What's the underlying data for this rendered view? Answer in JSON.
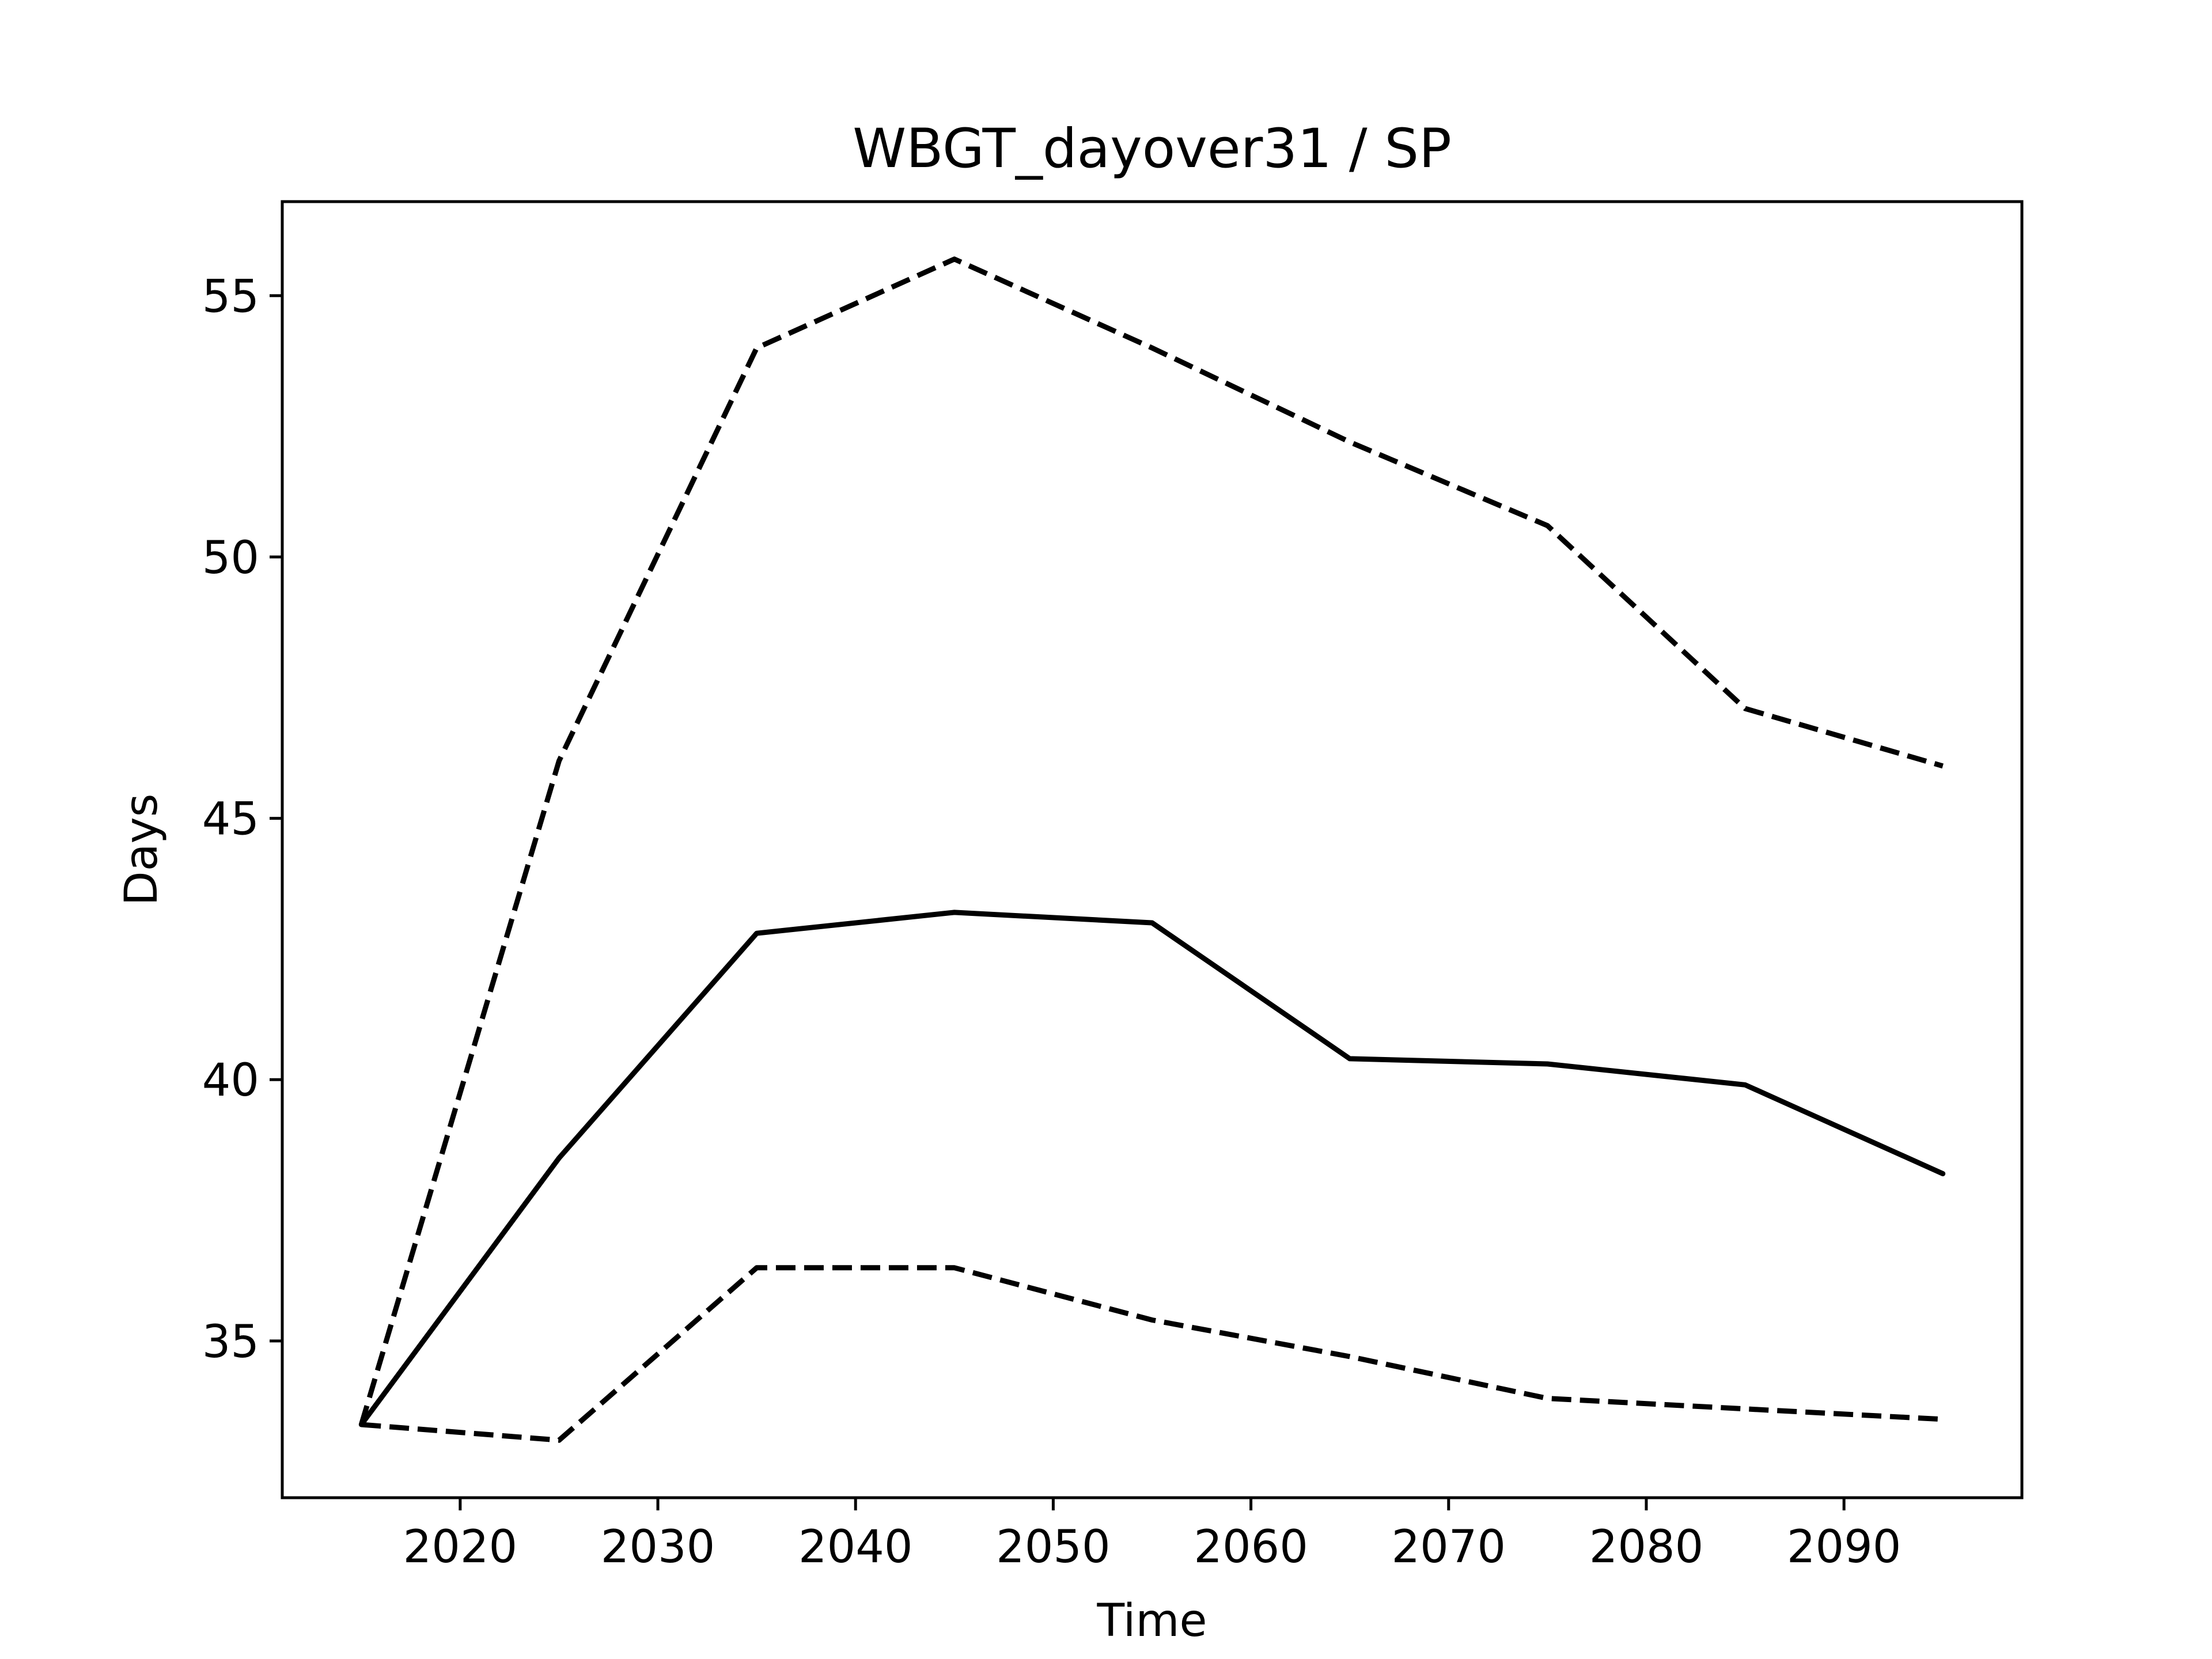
{
  "chart_data": {
    "type": "line",
    "title": "WBGT_dayover31 / SP",
    "xlabel": "Time",
    "ylabel": "Days",
    "xlim": [
      2011,
      2099
    ],
    "ylim": [
      32.0,
      56.8
    ],
    "xticks": [
      2020,
      2030,
      2040,
      2050,
      2060,
      2070,
      2080,
      2090
    ],
    "yticks": [
      35,
      40,
      45,
      50,
      55
    ],
    "xtick_labels": [
      "2020",
      "2030",
      "2040",
      "2050",
      "2060",
      "2070",
      "2080",
      "2090"
    ],
    "ytick_labels": [
      "35",
      "40",
      "45",
      "50",
      "55"
    ],
    "grid": false,
    "legend": "none",
    "x": [
      2015,
      2025,
      2035,
      2045,
      2055,
      2065,
      2075,
      2085,
      2095
    ],
    "series": [
      {
        "style": "solid",
        "color": "#000000",
        "values": [
          33.4,
          38.5,
          42.8,
          43.2,
          43.0,
          40.4,
          40.3,
          39.9,
          38.2
        ]
      },
      {
        "style": "dashed",
        "color": "#000000",
        "values": [
          33.4,
          46.1,
          54.0,
          55.7,
          54.0,
          52.2,
          50.6,
          47.1,
          46.0
        ]
      },
      {
        "style": "dashed",
        "color": "#000000",
        "values": [
          33.4,
          33.1,
          36.4,
          36.4,
          35.4,
          34.7,
          33.9,
          33.7,
          33.5
        ]
      }
    ]
  }
}
